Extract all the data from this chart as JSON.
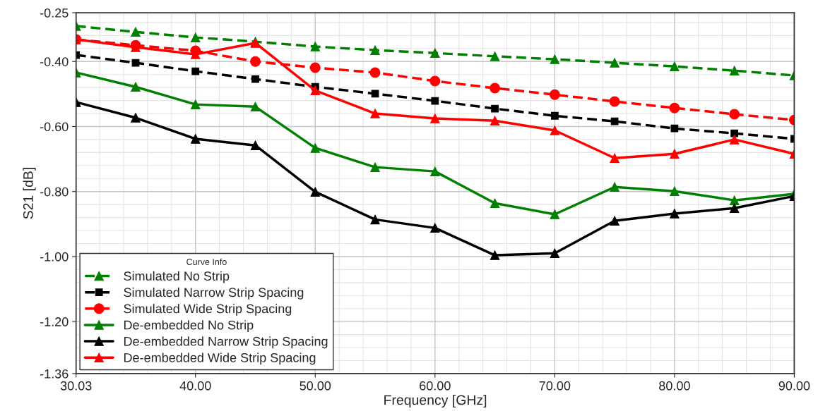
{
  "chart_data": {
    "type": "line",
    "xlabel": "Frequency [GHz]",
    "ylabel": "S21 [dB]",
    "legend_title": "Curve Info",
    "legend": "bottom left",
    "grid": true,
    "x": [
      30.03,
      35,
      40,
      45,
      50,
      55,
      60,
      65,
      70,
      75,
      80,
      85,
      90
    ],
    "xlim": [
      30.03,
      90
    ],
    "xticks": [
      {
        "value": 30.03,
        "label": "30.03"
      },
      {
        "value": 40,
        "label": "40.00"
      },
      {
        "value": 50,
        "label": "50.00"
      },
      {
        "value": 60,
        "label": "60.00"
      },
      {
        "value": 70,
        "label": "70.00"
      },
      {
        "value": 80,
        "label": "80.00"
      },
      {
        "value": 90,
        "label": "90.00"
      }
    ],
    "ylim": [
      -1.36,
      -0.25
    ],
    "yticks": [
      {
        "value": -1.36,
        "label": "-1.36"
      },
      {
        "value": -1.2,
        "label": "-1.20"
      },
      {
        "value": -1.0,
        "label": "-1.00"
      },
      {
        "value": -0.8,
        "label": "-0.80"
      },
      {
        "value": -0.6,
        "label": "-0.60"
      },
      {
        "value": -0.4,
        "label": "-0.40"
      },
      {
        "value": -0.25,
        "label": "-0.25"
      }
    ],
    "series": [
      {
        "name": "Simulated No Strip",
        "color": "#008000",
        "line_style": "dashed",
        "marker": "triangle",
        "values": [
          -0.291,
          -0.309,
          -0.326,
          -0.339,
          -0.354,
          -0.365,
          -0.374,
          -0.384,
          -0.393,
          -0.404,
          -0.415,
          -0.428,
          -0.443
        ]
      },
      {
        "name": "Simulated Narrow Strip Spacing",
        "color": "#000000",
        "line_style": "dashed",
        "marker": "square",
        "values": [
          -0.38,
          -0.404,
          -0.43,
          -0.454,
          -0.478,
          -0.499,
          -0.521,
          -0.545,
          -0.567,
          -0.584,
          -0.606,
          -0.621,
          -0.638
        ]
      },
      {
        "name": "Simulated Wide Strip Spacing",
        "color": "#ff0000",
        "line_style": "dashed",
        "marker": "circle",
        "values": [
          -0.332,
          -0.35,
          -0.367,
          -0.4,
          -0.419,
          -0.434,
          -0.46,
          -0.482,
          -0.502,
          -0.523,
          -0.543,
          -0.562,
          -0.58
        ]
      },
      {
        "name": "De-embedded No Strip",
        "color": "#008000",
        "line_style": "solid",
        "marker": "triangle",
        "values": [
          -0.434,
          -0.478,
          -0.532,
          -0.539,
          -0.666,
          -0.725,
          -0.738,
          -0.836,
          -0.87,
          -0.786,
          -0.799,
          -0.827,
          -0.807
        ]
      },
      {
        "name": "De-embedded Narrow Strip Spacing",
        "color": "#000000",
        "line_style": "solid",
        "marker": "triangle",
        "values": [
          -0.525,
          -0.573,
          -0.638,
          -0.658,
          -0.801,
          -0.886,
          -0.912,
          -0.996,
          -0.99,
          -0.89,
          -0.868,
          -0.851,
          -0.814
        ]
      },
      {
        "name": "De-embedded Wide Strip Spacing",
        "color": "#ff0000",
        "line_style": "solid",
        "marker": "triangle",
        "values": [
          -0.332,
          -0.356,
          -0.378,
          -0.343,
          -0.489,
          -0.56,
          -0.575,
          -0.582,
          -0.612,
          -0.697,
          -0.684,
          -0.64,
          -0.684
        ]
      }
    ]
  }
}
